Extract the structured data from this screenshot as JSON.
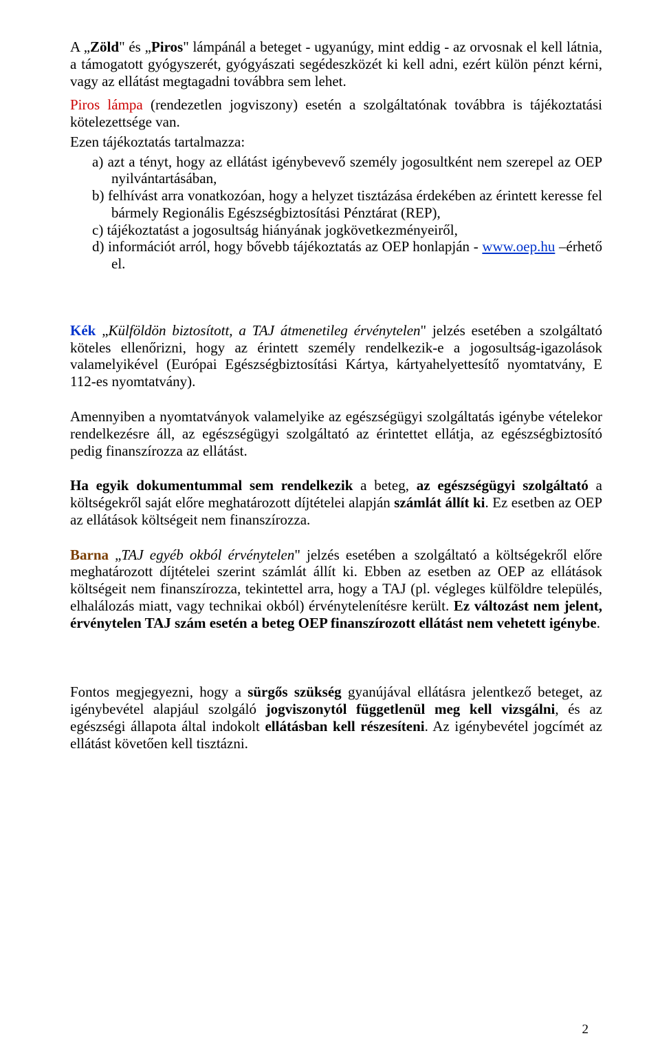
{
  "p1_a": "A „",
  "p1_zold": "Zöld",
  "p1_b": "\" és „",
  "p1_piros": "Piros",
  "p1_c": "\" lámpánál a beteget - ugyanúgy, mint eddig - az orvosnak el kell látnia, a támogatott gyógyszerét, gyógyászati segédeszközét ki kell adni, ezért külön pénzt kérni, vagy az ellátást megtagadni továbbra sem lehet.",
  "p2_a": "Piros lámpa",
  "p2_b": " (rendezetlen jogviszony) esetén a szolgáltatónak továbbra is tájékoztatási kötelezettsége van.",
  "p3": "Ezen tájékoztatás tartalmazza:",
  "li_a": "a) azt a tényt, hogy az ellátást igénybevevő személy jogosultként nem szerepel az OEP nyilvántartásában,",
  "li_b": "b) felhívást arra vonatkozóan, hogy a helyzet tisztázása érdekében az érintett keresse fel bármely Regionális Egészségbiztosítási Pénztárat (REP),",
  "li_c": "c) tájékoztatást a jogosultság hiányának jogkövetkezményeiről,",
  "li_d_a": "d) információt arról, hogy bővebb tájékoztatás az OEP honlapján - ",
  "li_d_link": "www.oep.hu",
  "li_d_b": " –érhető el.",
  "p4_kek": "Kék",
  "p4_b": " „",
  "p4_c": "Külföldön biztosított, a TAJ átmenetileg érvénytelen",
  "p4_d": "\" jelzés esetében a szolgáltató köteles ellenőrizni, hogy az érintett személy rendelkezik-e a jogosultság-igazolások valamelyikével (Európai Egészségbiztosítási Kártya, kártyahelyettesítő nyomtatvány, E 112-es nyomtatvány).",
  "p5": "Amennyiben a nyomtatványok valamelyike az egészségügyi szolgáltatás igénybe vételekor rendelkezésre áll, az egészségügyi szolgáltató az érintettet ellátja, az egészségbiztosító pedig finanszírozza az ellátást.",
  "p6_a": "Ha egyik dokumentummal sem rendelkezik",
  "p6_b": " a beteg, ",
  "p6_c": "az egészségügyi szolgáltató ",
  "p6_d": "a költségekről saját előre meghatározott díjtételei alapján ",
  "p6_e": "számlát állít ki",
  "p6_f": ". Ez esetben az OEP az ellátások költségeit nem finanszírozza.",
  "p7_barna": "Barna",
  "p7_b": " „",
  "p7_c": "TAJ egyéb okból érvénytelen",
  "p7_d": "\" jelzés esetében a szolgáltató a költségekről előre meghatározott díjtételei szerint számlát állít ki. Ebben az esetben az OEP az ellátások költségeit nem finanszírozza, tekintettel arra, hogy a TAJ (pl. végleges külföldre település, elhalálozás miatt, vagy technikai okból) érvénytelenítésre került. ",
  "p7_e": "Ez változást nem jelent, érvénytelen TAJ szám esetén a beteg OEP finanszírozott ellátást nem vehetett igénybe",
  "p7_f": ".",
  "p8_a": "Fontos megjegyezni, hogy a ",
  "p8_b": "sürgős szükség",
  "p8_c": " gyanújával ellátásra jelentkező beteget, az igénybevétel alapjául szolgáló ",
  "p8_d": "jogviszonytól függetlenül meg kell vizsgálni",
  "p8_e": ", és az egészségi állapota által indokolt ",
  "p8_f": "ellátásban kell részesíteni",
  "p8_g": ". Az igénybevétel jogcímét az ellátást követően kell tisztázni.",
  "page_number": "2"
}
